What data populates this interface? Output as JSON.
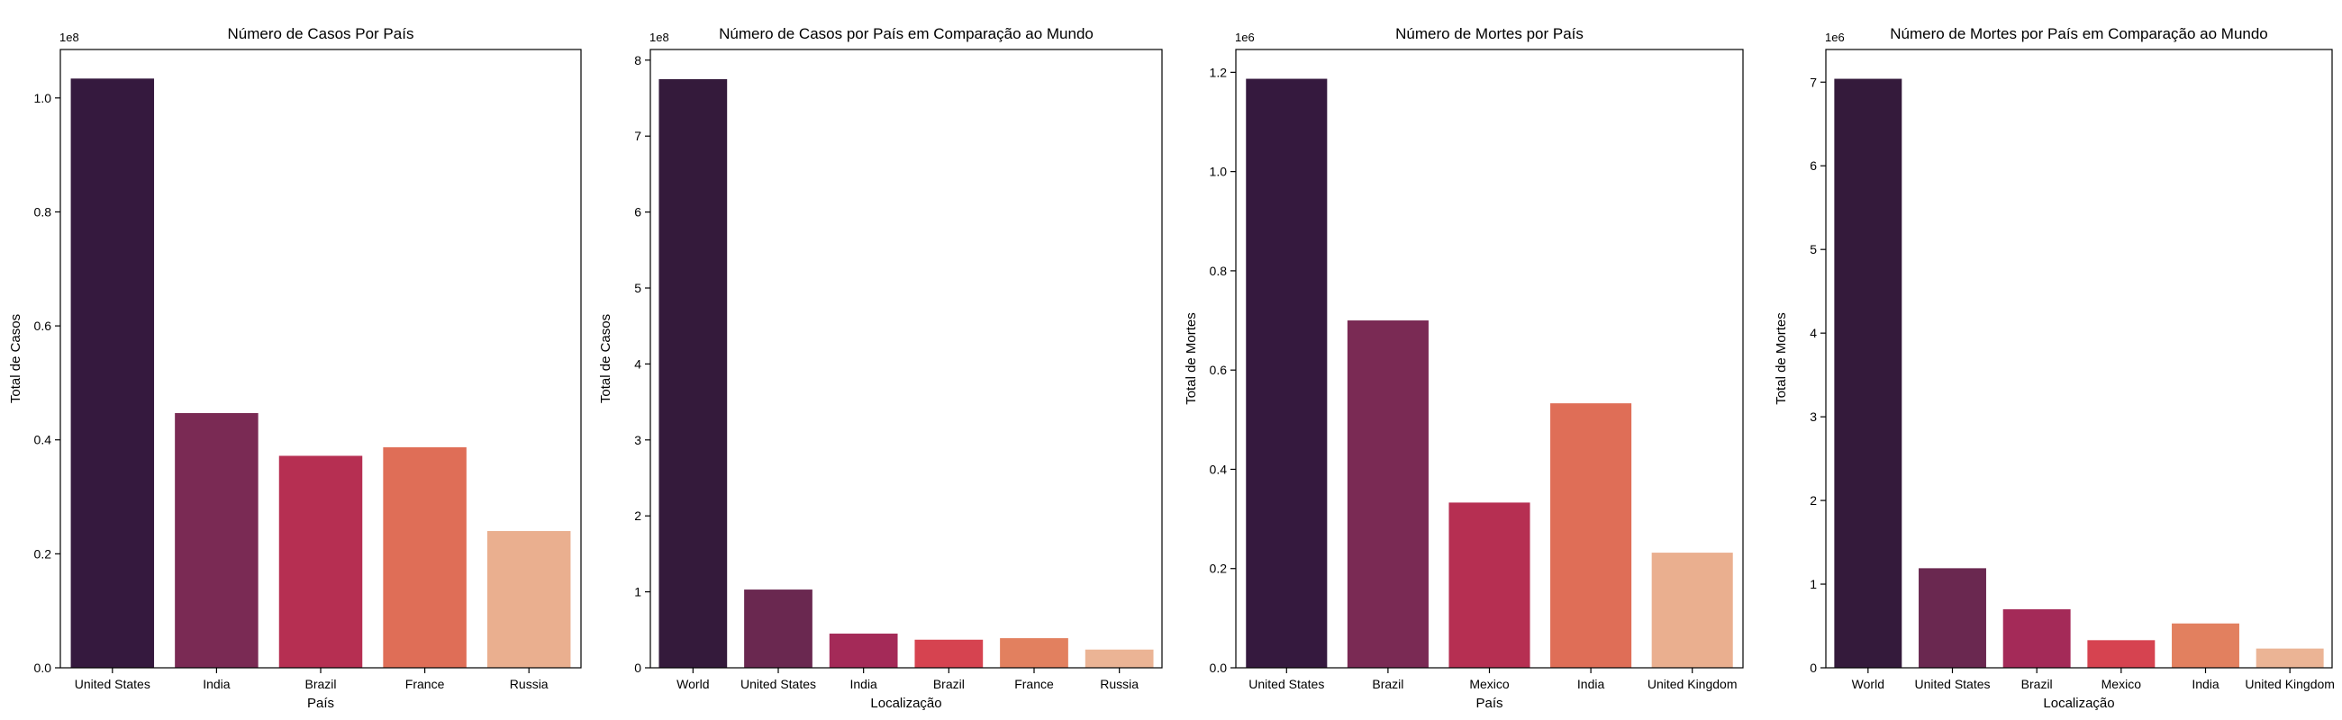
{
  "palette_5": [
    "#35193e",
    "#7a2a54",
    "#b62f52",
    "#df6e57",
    "#eaaf8f"
  ],
  "palette_6": [
    "#341a3b",
    "#6a2850",
    "#a42a58",
    "#d64350",
    "#e2805f",
    "#ebb495"
  ],
  "chart_data": [
    {
      "type": "bar",
      "title": "Número de Casos Por País",
      "xlabel": "País",
      "ylabel": "Total de Casos",
      "offset_text": "1e8",
      "categories": [
        "United States",
        "India",
        "Brazil",
        "France",
        "Russia"
      ],
      "values": [
        1.034,
        0.447,
        0.372,
        0.387,
        0.24
      ],
      "ylim": [
        0,
        1.085
      ],
      "yticks": [
        0.0,
        0.2,
        0.4,
        0.6,
        0.8,
        1.0
      ],
      "ytick_labels": [
        "0.0",
        "0.2",
        "0.4",
        "0.6",
        "0.8",
        "1.0"
      ],
      "grid": false,
      "palette": "palette_5"
    },
    {
      "type": "bar",
      "title": "Número de Casos por País em Comparação ao Mundo",
      "xlabel": "Localização",
      "ylabel": "Total de Casos",
      "offset_text": "1e8",
      "categories": [
        "World",
        "United States",
        "India",
        "Brazil",
        "France",
        "Russia"
      ],
      "values": [
        7.75,
        1.03,
        0.45,
        0.37,
        0.39,
        0.24
      ],
      "ylim": [
        0,
        8.14
      ],
      "yticks": [
        0,
        1,
        2,
        3,
        4,
        5,
        6,
        7,
        8
      ],
      "ytick_labels": [
        "0",
        "1",
        "2",
        "3",
        "4",
        "5",
        "6",
        "7",
        "8"
      ],
      "grid": false,
      "palette": "palette_6"
    },
    {
      "type": "bar",
      "title": "Número de Mortes por País",
      "xlabel": "País",
      "ylabel": "Total de Mortes",
      "offset_text": "1e6",
      "categories": [
        "United States",
        "Brazil",
        "Mexico",
        "India",
        "United Kingdom"
      ],
      "values": [
        1.187,
        0.7,
        0.333,
        0.533,
        0.232
      ],
      "ylim": [
        0,
        1.246
      ],
      "yticks": [
        0.0,
        0.2,
        0.4,
        0.6,
        0.8,
        1.0,
        1.2
      ],
      "ytick_labels": [
        "0.0",
        "0.2",
        "0.4",
        "0.6",
        "0.8",
        "1.0",
        "1.2"
      ],
      "grid": false,
      "palette": "palette_5"
    },
    {
      "type": "bar",
      "title": "Número de Mortes por País em Comparação ao Mundo",
      "xlabel": "Localização",
      "ylabel": "Total de Mortes",
      "offset_text": "1e6",
      "categories": [
        "World",
        "United States",
        "Brazil",
        "Mexico",
        "India",
        "United Kingdom"
      ],
      "values": [
        7.04,
        1.19,
        0.7,
        0.33,
        0.53,
        0.23
      ],
      "ylim": [
        0,
        7.39
      ],
      "yticks": [
        0,
        1,
        2,
        3,
        4,
        5,
        6,
        7
      ],
      "ytick_labels": [
        "0",
        "1",
        "2",
        "3",
        "4",
        "5",
        "6",
        "7"
      ],
      "grid": false,
      "palette": "palette_6"
    }
  ]
}
